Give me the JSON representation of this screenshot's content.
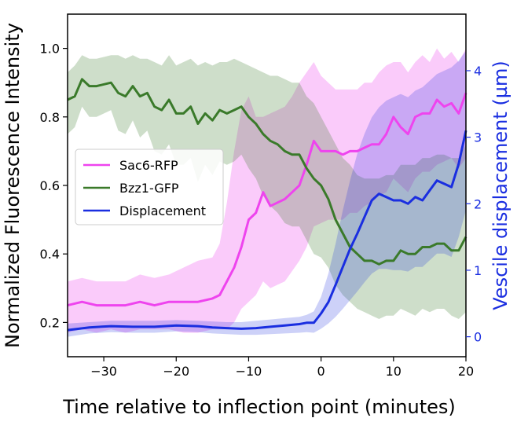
{
  "chart_data": {
    "type": "line",
    "title": "",
    "xlabel": "Time relative to inflection point (minutes)",
    "ylabel": "Normalized Fluorescence Intensity",
    "y2label": "Vescile displacement (µm)",
    "xlim": [
      -35,
      20
    ],
    "ylim": [
      0.1,
      1.1
    ],
    "y2lim": [
      -0.3,
      4.85
    ],
    "xticks": [
      -30,
      -20,
      -10,
      0,
      10,
      20
    ],
    "yticks": [
      0.2,
      0.4,
      0.6,
      0.8,
      1.0
    ],
    "y2ticks": [
      0,
      1,
      2,
      3,
      4
    ],
    "xtick_labels": [
      "−30",
      "−20",
      "−10",
      "0",
      "10",
      "20"
    ],
    "ytick_labels": [
      "0.2",
      "0.4",
      "0.6",
      "0.8",
      "1.0"
    ],
    "y2tick_labels": [
      "0",
      "1",
      "2",
      "3",
      "4"
    ],
    "legend_position": "center-left",
    "colors": {
      "sac6": "#ee44ee",
      "bzz1": "#3a7a2a",
      "disp": "#1a2ee0",
      "right_axis": "#1a2ee0"
    },
    "series": [
      {
        "name": "Sac6-RFP",
        "axis": "left",
        "x": [
          -35,
          -33,
          -31,
          -29,
          -27,
          -25,
          -23,
          -21,
          -19,
          -17,
          -15,
          -14,
          -13,
          -12,
          -11,
          -10,
          -9,
          -8,
          -7,
          -6,
          -5,
          -4,
          -3,
          -2,
          -1,
          0,
          1,
          2,
          3,
          4,
          5,
          6,
          7,
          8,
          9,
          10,
          11,
          12,
          13,
          14,
          15,
          16,
          17,
          18,
          19,
          20
        ],
        "values": [
          0.25,
          0.26,
          0.25,
          0.25,
          0.25,
          0.26,
          0.25,
          0.26,
          0.26,
          0.26,
          0.27,
          0.28,
          0.32,
          0.36,
          0.42,
          0.5,
          0.52,
          0.58,
          0.54,
          0.55,
          0.56,
          0.58,
          0.6,
          0.66,
          0.73,
          0.7,
          0.7,
          0.7,
          0.69,
          0.7,
          0.7,
          0.71,
          0.72,
          0.72,
          0.75,
          0.8,
          0.77,
          0.75,
          0.8,
          0.81,
          0.81,
          0.85,
          0.83,
          0.84,
          0.81,
          0.87
        ],
        "upper": [
          0.32,
          0.33,
          0.32,
          0.32,
          0.32,
          0.34,
          0.33,
          0.34,
          0.36,
          0.38,
          0.39,
          0.43,
          0.55,
          0.7,
          0.82,
          0.86,
          0.8,
          0.8,
          0.81,
          0.82,
          0.83,
          0.86,
          0.9,
          0.93,
          0.96,
          0.92,
          0.9,
          0.88,
          0.88,
          0.88,
          0.88,
          0.9,
          0.9,
          0.93,
          0.95,
          0.96,
          0.96,
          0.93,
          0.96,
          0.98,
          0.96,
          1.0,
          0.97,
          0.99,
          0.96,
          1.0
        ],
        "lower": [
          0.17,
          0.18,
          0.17,
          0.18,
          0.17,
          0.18,
          0.18,
          0.18,
          0.17,
          0.17,
          0.18,
          0.18,
          0.18,
          0.2,
          0.24,
          0.26,
          0.28,
          0.32,
          0.3,
          0.31,
          0.32,
          0.35,
          0.38,
          0.42,
          0.48,
          0.49,
          0.5,
          0.5,
          0.5,
          0.52,
          0.52,
          0.54,
          0.55,
          0.57,
          0.58,
          0.62,
          0.6,
          0.58,
          0.62,
          0.64,
          0.64,
          0.66,
          0.67,
          0.68,
          0.65,
          0.68
        ]
      },
      {
        "name": "Bzz1-GFP",
        "axis": "left",
        "x": [
          -35,
          -34,
          -33,
          -32,
          -31,
          -29,
          -28,
          -27,
          -26,
          -25,
          -24,
          -23,
          -22,
          -21,
          -20,
          -19,
          -18,
          -17,
          -16,
          -15,
          -14,
          -13,
          -12,
          -11,
          -10,
          -9,
          -8,
          -7,
          -6,
          -5,
          -4,
          -3,
          -2,
          -1,
          0,
          1,
          2,
          3,
          4,
          5,
          6,
          7,
          8,
          9,
          10,
          11,
          12,
          13,
          14,
          15,
          16,
          17,
          18,
          19,
          20
        ],
        "values": [
          0.85,
          0.86,
          0.91,
          0.89,
          0.89,
          0.9,
          0.87,
          0.86,
          0.89,
          0.86,
          0.87,
          0.83,
          0.82,
          0.85,
          0.81,
          0.81,
          0.83,
          0.78,
          0.81,
          0.79,
          0.82,
          0.81,
          0.82,
          0.83,
          0.8,
          0.78,
          0.75,
          0.73,
          0.72,
          0.7,
          0.69,
          0.69,
          0.65,
          0.62,
          0.6,
          0.56,
          0.5,
          0.46,
          0.42,
          0.4,
          0.38,
          0.38,
          0.37,
          0.38,
          0.38,
          0.41,
          0.4,
          0.4,
          0.42,
          0.42,
          0.43,
          0.43,
          0.41,
          0.41,
          0.45
        ],
        "upper": [
          0.93,
          0.95,
          0.98,
          0.97,
          0.97,
          0.98,
          0.98,
          0.97,
          0.98,
          0.97,
          0.97,
          0.96,
          0.95,
          0.98,
          0.95,
          0.96,
          0.97,
          0.95,
          0.96,
          0.95,
          0.96,
          0.96,
          0.97,
          0.96,
          0.95,
          0.94,
          0.93,
          0.92,
          0.92,
          0.91,
          0.9,
          0.9,
          0.86,
          0.84,
          0.8,
          0.76,
          0.72,
          0.68,
          0.66,
          0.63,
          0.62,
          0.62,
          0.62,
          0.63,
          0.63,
          0.66,
          0.66,
          0.66,
          0.68,
          0.68,
          0.69,
          0.69,
          0.68,
          0.68,
          0.72
        ],
        "lower": [
          0.75,
          0.77,
          0.83,
          0.8,
          0.8,
          0.82,
          0.76,
          0.75,
          0.79,
          0.74,
          0.76,
          0.7,
          0.69,
          0.72,
          0.66,
          0.66,
          0.68,
          0.61,
          0.66,
          0.63,
          0.67,
          0.66,
          0.67,
          0.69,
          0.65,
          0.62,
          0.57,
          0.54,
          0.52,
          0.49,
          0.48,
          0.48,
          0.44,
          0.4,
          0.39,
          0.36,
          0.31,
          0.28,
          0.26,
          0.24,
          0.23,
          0.22,
          0.21,
          0.22,
          0.22,
          0.24,
          0.23,
          0.22,
          0.24,
          0.23,
          0.24,
          0.24,
          0.22,
          0.21,
          0.23
        ]
      },
      {
        "name": "Displacement",
        "axis": "right",
        "x": [
          -35,
          -32,
          -29,
          -26,
          -23,
          -20,
          -17,
          -15,
          -13,
          -11,
          -9,
          -7,
          -5,
          -3,
          -2,
          -1,
          0,
          1,
          2,
          3,
          4,
          5,
          6,
          7,
          8,
          9,
          10,
          11,
          12,
          13,
          14,
          15,
          16,
          17,
          18,
          19,
          20
        ],
        "values": [
          0.1,
          0.14,
          0.16,
          0.15,
          0.15,
          0.17,
          0.16,
          0.14,
          0.13,
          0.12,
          0.13,
          0.15,
          0.17,
          0.19,
          0.21,
          0.21,
          0.35,
          0.52,
          0.78,
          1.05,
          1.32,
          1.55,
          1.8,
          2.05,
          2.15,
          2.1,
          2.05,
          2.05,
          2.0,
          2.1,
          2.05,
          2.2,
          2.35,
          2.3,
          2.25,
          2.6,
          3.1
        ],
        "upper": [
          0.2,
          0.22,
          0.24,
          0.24,
          0.24,
          0.25,
          0.24,
          0.23,
          0.22,
          0.22,
          0.24,
          0.26,
          0.28,
          0.3,
          0.33,
          0.38,
          0.6,
          0.95,
          1.4,
          1.9,
          2.35,
          2.75,
          3.05,
          3.3,
          3.45,
          3.55,
          3.6,
          3.65,
          3.6,
          3.7,
          3.75,
          3.85,
          3.95,
          4.0,
          4.05,
          4.15,
          4.3
        ],
        "lower": [
          0.0,
          0.05,
          0.07,
          0.06,
          0.06,
          0.08,
          0.07,
          0.05,
          0.04,
          0.03,
          0.03,
          0.04,
          0.05,
          0.06,
          0.07,
          0.06,
          0.12,
          0.2,
          0.3,
          0.42,
          0.55,
          0.68,
          0.82,
          0.95,
          1.02,
          1.02,
          1.0,
          1.0,
          0.98,
          1.05,
          1.05,
          1.15,
          1.25,
          1.25,
          1.2,
          1.5,
          1.9
        ]
      }
    ]
  }
}
